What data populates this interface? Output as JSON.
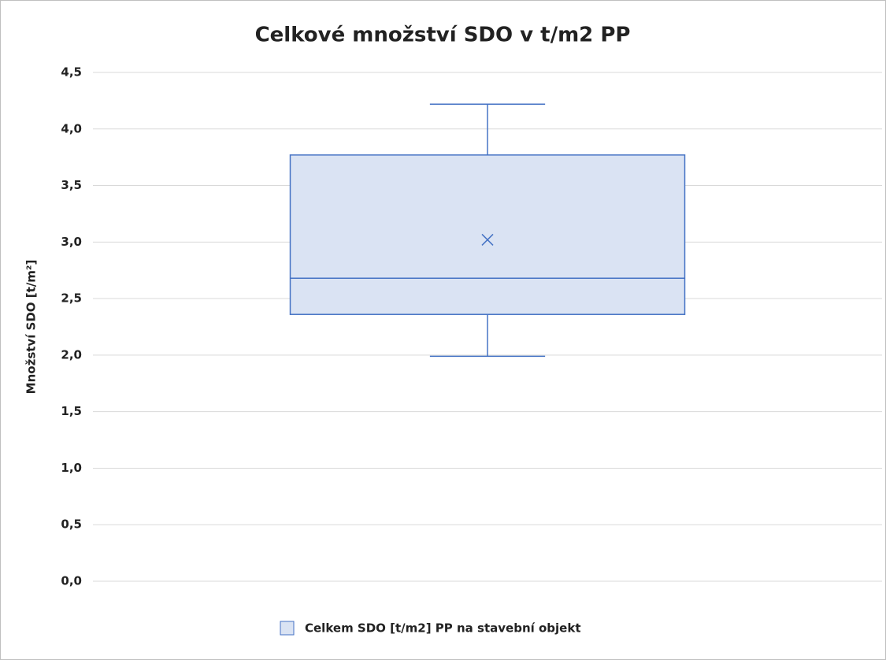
{
  "chart_data": {
    "type": "box",
    "title": "Celkové množství SDO v t/m2 PP",
    "y_label": "Množství SDO [t/m²]",
    "ylim": [
      0,
      4.5
    ],
    "yticks": [
      {
        "value": 0,
        "label": "0,0"
      },
      {
        "value": 0.5,
        "label": "0,5"
      },
      {
        "value": 1,
        "label": "1,0"
      },
      {
        "value": 1.5,
        "label": "1,5"
      },
      {
        "value": 2,
        "label": "2,0"
      },
      {
        "value": 2.5,
        "label": "2,5"
      },
      {
        "value": 3,
        "label": "3,0"
      },
      {
        "value": 3.5,
        "label": "3,5"
      },
      {
        "value": 4,
        "label": "4,0"
      },
      {
        "value": 4.5,
        "label": "4,5"
      }
    ],
    "grid": true,
    "legend": "bottom",
    "series": [
      {
        "name": "Celkem SDO [t/m2] PP na stavební objekt",
        "color": "#4472c4",
        "fill": "#dae3f3",
        "min": 1.99,
        "q1": 2.36,
        "median": 2.68,
        "q3": 3.77,
        "max": 4.22,
        "mean": 3.02
      }
    ]
  }
}
